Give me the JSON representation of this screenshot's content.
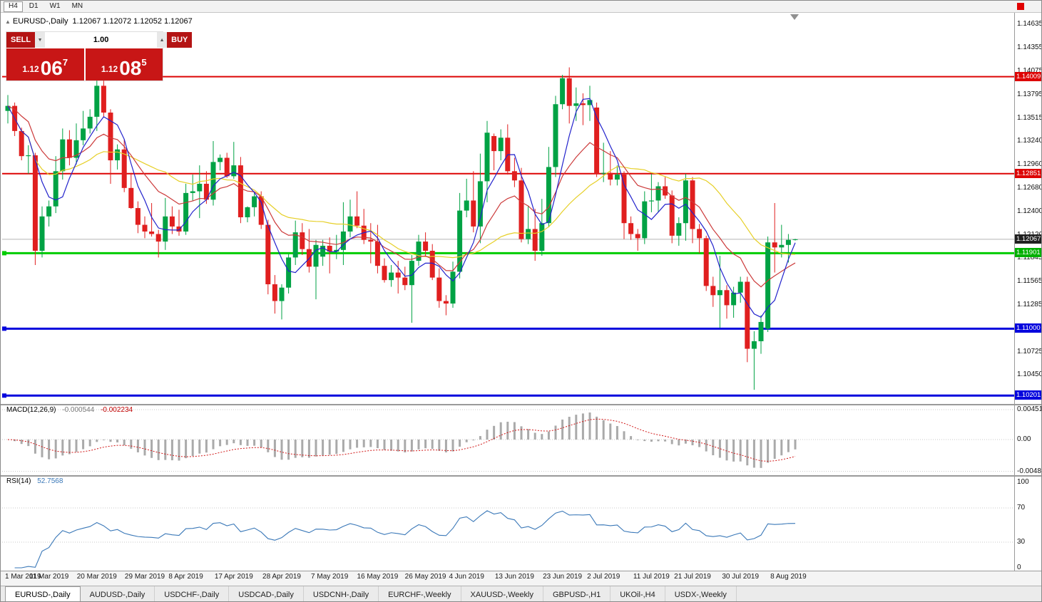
{
  "toolbar": {
    "timeframes": [
      "H4",
      "D1",
      "W1",
      "MN"
    ],
    "active_timeframe": "H4"
  },
  "icons": {
    "collapse_arrow": "▲",
    "volume_down": "▼",
    "volume_up": "▲"
  },
  "chart": {
    "symbol_period": "EURUSD-,Daily",
    "ohlc": "1.12067 1.12072 1.12052 1.12067"
  },
  "trade_panel": {
    "sell_label": "SELL",
    "buy_label": "BUY",
    "volume": "1.00",
    "sell_price": {
      "prefix": "1.12",
      "big": "06",
      "sup": "7"
    },
    "buy_price": {
      "prefix": "1.12",
      "big": "08",
      "sup": "5"
    }
  },
  "tabs": {
    "active_index": 0,
    "items": [
      "EURUSD-,Daily",
      "AUDUSD-,Daily",
      "USDCHF-,Daily",
      "USDCAD-,Daily",
      "USDCNH-,Daily",
      "EURCHF-,Weekly",
      "XAUUSD-,Weekly",
      "GBPUSD-,H1",
      "UKOil-,H4",
      "USDX-,Weekly"
    ],
    "active": "EURUSD-,Daily"
  },
  "chart_data": {
    "type": "candlestick",
    "symbol": "EURUSD-",
    "timeframe": "Daily",
    "current_price": 1.12067,
    "current_price_label": "1.12067",
    "colors": {
      "up": "#00a244",
      "down": "#e01f1f",
      "current_line": "#b4b4b4",
      "current_tag": "#202020"
    },
    "price_ticks": [
      1.14635,
      1.14355,
      1.14075,
      1.13795,
      1.13515,
      1.1324,
      1.1296,
      1.1268,
      1.124,
      1.1212,
      1.11845,
      1.11565,
      1.11285,
      1.10725,
      1.1045
    ],
    "levels": [
      {
        "label": "1.14009",
        "price": 1.14009,
        "color": "#dd0404",
        "width": 2,
        "role": "resistance"
      },
      {
        "label": "1.12851",
        "price": 1.12851,
        "color": "#dd0404",
        "width": 2,
        "role": "resistance"
      },
      {
        "label": "1.11901",
        "price": 1.11901,
        "color": "#00cc00",
        "tag": "#00b000",
        "width": 3,
        "handle": true,
        "role": "support"
      },
      {
        "label": "1.11000",
        "price": 1.11,
        "color": "#0404dd",
        "width": 3,
        "handle": true,
        "role": "support"
      },
      {
        "label": "1.10201",
        "price": 1.10201,
        "color": "#0404dd",
        "width": 3,
        "handle": true,
        "role": "support"
      }
    ],
    "moving_averages": [
      {
        "name": "slow-yellow",
        "period": 24,
        "type": "sma",
        "color": "#e6cf26"
      },
      {
        "name": "medium-red",
        "period": 13,
        "type": "ema",
        "color": "#cc3a3a"
      },
      {
        "name": "fast-blue",
        "period": 5,
        "type": "sma",
        "color": "#2222cc"
      }
    ],
    "indicators": {
      "macd": {
        "label": "MACD(12,26,9)",
        "value_main": "-0.000544",
        "value_signal": "-0.002234",
        "params": [
          12,
          26,
          9
        ],
        "bar_color": "#aaaaaa",
        "signal_color": "#d11717",
        "axis": [
          {
            "text": "0.004517",
            "value": 0.004517
          },
          {
            "text": "0.00",
            "value": 0
          },
          {
            "text": "-0.004800",
            "value": -0.0048
          }
        ]
      },
      "rsi": {
        "label": "RSI(14)",
        "value_text": "52.7568",
        "period": 14,
        "line_color": "#3a78b8",
        "level_lines": [
          70,
          30
        ],
        "axis": [
          {
            "text": "100",
            "value": 100
          },
          {
            "text": "70",
            "value": 70
          },
          {
            "text": "30",
            "value": 30
          },
          {
            "text": "0",
            "value": 0
          }
        ]
      }
    },
    "date_labels": [
      {
        "text": "1 Mar 2019",
        "index": 0
      },
      {
        "text": "11 Mar 2019",
        "index": 6
      },
      {
        "text": "20 Mar 2019",
        "index": 13
      },
      {
        "text": "29 Mar 2019",
        "index": 20
      },
      {
        "text": "8 Apr 2019",
        "index": 26
      },
      {
        "text": "17 Apr 2019",
        "index": 33
      },
      {
        "text": "28 Apr 2019",
        "index": 40
      },
      {
        "text": "7 May 2019",
        "index": 47
      },
      {
        "text": "16 May 2019",
        "index": 54
      },
      {
        "text": "26 May 2019",
        "index": 61
      },
      {
        "text": "4 Jun 2019",
        "index": 67
      },
      {
        "text": "13 Jun 2019",
        "index": 74
      },
      {
        "text": "23 Jun 2019",
        "index": 81
      },
      {
        "text": "2 Jul 2019",
        "index": 87
      },
      {
        "text": "11 Jul 2019",
        "index": 94
      },
      {
        "text": "21 Jul 2019",
        "index": 100
      },
      {
        "text": "30 Jul 2019",
        "index": 107
      },
      {
        "text": "8 Aug 2019",
        "index": 114
      }
    ],
    "ohlc": [
      [
        1.136,
        1.1379,
        1.1345,
        1.1366
      ],
      [
        1.1366,
        1.137,
        1.133,
        1.1336
      ],
      [
        1.1336,
        1.134,
        1.1301,
        1.1306
      ],
      [
        1.1306,
        1.1319,
        1.1285,
        1.1307
      ],
      [
        1.1307,
        1.131,
        1.1176,
        1.1193
      ],
      [
        1.1193,
        1.1246,
        1.1185,
        1.1234
      ],
      [
        1.1234,
        1.1253,
        1.1222,
        1.1246
      ],
      [
        1.1246,
        1.1306,
        1.1238,
        1.1288
      ],
      [
        1.1288,
        1.1339,
        1.1278,
        1.1326
      ],
      [
        1.1326,
        1.1337,
        1.1295,
        1.1304
      ],
      [
        1.1304,
        1.1345,
        1.1296,
        1.1325
      ],
      [
        1.1325,
        1.136,
        1.1319,
        1.1339
      ],
      [
        1.1339,
        1.1362,
        1.1333,
        1.1353
      ],
      [
        1.1353,
        1.141,
        1.1336,
        1.139
      ],
      [
        1.139,
        1.1398,
        1.1352,
        1.1358
      ],
      [
        1.1358,
        1.1362,
        1.1273,
        1.1301
      ],
      [
        1.1301,
        1.132,
        1.129,
        1.1314
      ],
      [
        1.1314,
        1.1326,
        1.1263,
        1.1268
      ],
      [
        1.1268,
        1.1286,
        1.1243,
        1.1244
      ],
      [
        1.1244,
        1.1252,
        1.1214,
        1.1224
      ],
      [
        1.1224,
        1.1234,
        1.1208,
        1.1216
      ],
      [
        1.1216,
        1.125,
        1.121,
        1.1213
      ],
      [
        1.1213,
        1.1218,
        1.1185,
        1.1204
      ],
      [
        1.1204,
        1.1256,
        1.1194,
        1.1234
      ],
      [
        1.1234,
        1.1246,
        1.1213,
        1.1222
      ],
      [
        1.1222,
        1.1242,
        1.1211,
        1.1216
      ],
      [
        1.1216,
        1.1273,
        1.1212,
        1.1262
      ],
      [
        1.1262,
        1.1284,
        1.1253,
        1.1264
      ],
      [
        1.1264,
        1.1295,
        1.1232,
        1.1273
      ],
      [
        1.1273,
        1.1288,
        1.1249,
        1.1254
      ],
      [
        1.1254,
        1.1324,
        1.1247,
        1.1299
      ],
      [
        1.1299,
        1.1308,
        1.1289,
        1.1304
      ],
      [
        1.1304,
        1.131,
        1.128,
        1.1282
      ],
      [
        1.1282,
        1.1323,
        1.1279,
        1.1295
      ],
      [
        1.1295,
        1.1305,
        1.1226,
        1.1233
      ],
      [
        1.1233,
        1.1246,
        1.1227,
        1.1245
      ],
      [
        1.1245,
        1.1262,
        1.1234,
        1.1258
      ],
      [
        1.1258,
        1.1264,
        1.1219,
        1.1224
      ],
      [
        1.1224,
        1.123,
        1.1141,
        1.1153
      ],
      [
        1.1153,
        1.1164,
        1.1118,
        1.1133
      ],
      [
        1.1133,
        1.1153,
        1.1111,
        1.1149
      ],
      [
        1.1149,
        1.1189,
        1.1142,
        1.1185
      ],
      [
        1.1185,
        1.1229,
        1.1176,
        1.1215
      ],
      [
        1.1215,
        1.1226,
        1.1188,
        1.1195
      ],
      [
        1.1195,
        1.1219,
        1.1167,
        1.1174
      ],
      [
        1.1174,
        1.1206,
        1.1135,
        1.12
      ],
      [
        1.1186,
        1.1206,
        1.1175,
        1.1199
      ],
      [
        1.1199,
        1.1209,
        1.1166,
        1.1192
      ],
      [
        1.1192,
        1.1212,
        1.1183,
        1.1194
      ],
      [
        1.1194,
        1.1251,
        1.1176,
        1.1216
      ],
      [
        1.1216,
        1.1254,
        1.1209,
        1.1234
      ],
      [
        1.1234,
        1.1264,
        1.122,
        1.1223
      ],
      [
        1.1223,
        1.1243,
        1.1201,
        1.1206
      ],
      [
        1.1206,
        1.1226,
        1.1178,
        1.1204
      ],
      [
        1.1204,
        1.1224,
        1.1166,
        1.1175
      ],
      [
        1.1175,
        1.1184,
        1.1155,
        1.1158
      ],
      [
        1.1158,
        1.1176,
        1.115,
        1.1167
      ],
      [
        1.1167,
        1.1181,
        1.1142,
        1.1161
      ],
      [
        1.1161,
        1.1174,
        1.1146,
        1.1152
      ],
      [
        1.1152,
        1.1188,
        1.1107,
        1.1181
      ],
      [
        1.1181,
        1.1212,
        1.1175,
        1.1204
      ],
      [
        1.1204,
        1.1215,
        1.1186,
        1.1193
      ],
      [
        1.1193,
        1.1201,
        1.1158,
        1.1161
      ],
      [
        1.1161,
        1.1172,
        1.1125,
        1.1133
      ],
      [
        1.1133,
        1.114,
        1.1116,
        1.113
      ],
      [
        1.113,
        1.118,
        1.1125,
        1.1168
      ],
      [
        1.1168,
        1.1262,
        1.116,
        1.1241
      ],
      [
        1.1241,
        1.1279,
        1.1233,
        1.1253
      ],
      [
        1.1253,
        1.1288,
        1.1215,
        1.1222
      ],
      [
        1.1222,
        1.1309,
        1.1202,
        1.1276
      ],
      [
        1.1276,
        1.1348,
        1.1251,
        1.1334
      ],
      [
        1.133,
        1.1333,
        1.1289,
        1.1312
      ],
      [
        1.1312,
        1.1338,
        1.1301,
        1.1328
      ],
      [
        1.1328,
        1.1344,
        1.1284,
        1.1288
      ],
      [
        1.1288,
        1.1304,
        1.1269,
        1.1277
      ],
      [
        1.1277,
        1.1292,
        1.1203,
        1.1207
      ],
      [
        1.1207,
        1.1247,
        1.1201,
        1.1219
      ],
      [
        1.1219,
        1.1243,
        1.1181,
        1.1193
      ],
      [
        1.1193,
        1.1255,
        1.1187,
        1.1226
      ],
      [
        1.1226,
        1.1317,
        1.1221,
        1.1293
      ],
      [
        1.1293,
        1.1378,
        1.1281,
        1.1368
      ],
      [
        1.1368,
        1.1403,
        1.1362,
        1.1399
      ],
      [
        1.1399,
        1.1412,
        1.1345,
        1.1366
      ],
      [
        1.1366,
        1.1388,
        1.1348,
        1.1369
      ],
      [
        1.1369,
        1.1381,
        1.1343,
        1.1367
      ],
      [
        1.1367,
        1.139,
        1.1348,
        1.1373
      ],
      [
        1.1364,
        1.137,
        1.1281,
        1.1285
      ],
      [
        1.1285,
        1.1322,
        1.1275,
        1.1286
      ],
      [
        1.1286,
        1.1312,
        1.1271,
        1.1278
      ],
      [
        1.1278,
        1.1295,
        1.1271,
        1.1284
      ],
      [
        1.1284,
        1.1288,
        1.1207,
        1.1226
      ],
      [
        1.1226,
        1.1234,
        1.1206,
        1.1213
      ],
      [
        1.1213,
        1.1219,
        1.1193,
        1.1208
      ],
      [
        1.1208,
        1.1264,
        1.1201,
        1.1252
      ],
      [
        1.1252,
        1.1285,
        1.1239,
        1.1253
      ],
      [
        1.1253,
        1.1275,
        1.1239,
        1.127
      ],
      [
        1.127,
        1.1281,
        1.1255,
        1.1259
      ],
      [
        1.1259,
        1.1265,
        1.1202,
        1.1211
      ],
      [
        1.1211,
        1.1233,
        1.1199,
        1.1226
      ],
      [
        1.1226,
        1.1285,
        1.1205,
        1.1277
      ],
      [
        1.1277,
        1.1281,
        1.1202,
        1.1219
      ],
      [
        1.1219,
        1.1225,
        1.119,
        1.1208
      ],
      [
        1.1208,
        1.1211,
        1.1145,
        1.1151
      ],
      [
        1.1151,
        1.1162,
        1.1126,
        1.114
      ],
      [
        1.114,
        1.1187,
        1.1101,
        1.1146
      ],
      [
        1.1146,
        1.1152,
        1.1112,
        1.1128
      ],
      [
        1.1128,
        1.115,
        1.1113,
        1.1143
      ],
      [
        1.1143,
        1.1162,
        1.1131,
        1.1156
      ],
      [
        1.1156,
        1.1162,
        1.106,
        1.1076
      ],
      [
        1.1076,
        1.1097,
        1.1027,
        1.1085
      ],
      [
        1.1085,
        1.1116,
        1.107,
        1.1108
      ],
      [
        1.11,
        1.121,
        1.1096,
        1.1203
      ],
      [
        1.1203,
        1.125,
        1.1167,
        1.1197
      ],
      [
        1.1197,
        1.1224,
        1.1185,
        1.12
      ],
      [
        1.12,
        1.1213,
        1.1179,
        1.1206
      ],
      [
        1.12067,
        1.12072,
        1.12052,
        1.12067
      ]
    ]
  }
}
